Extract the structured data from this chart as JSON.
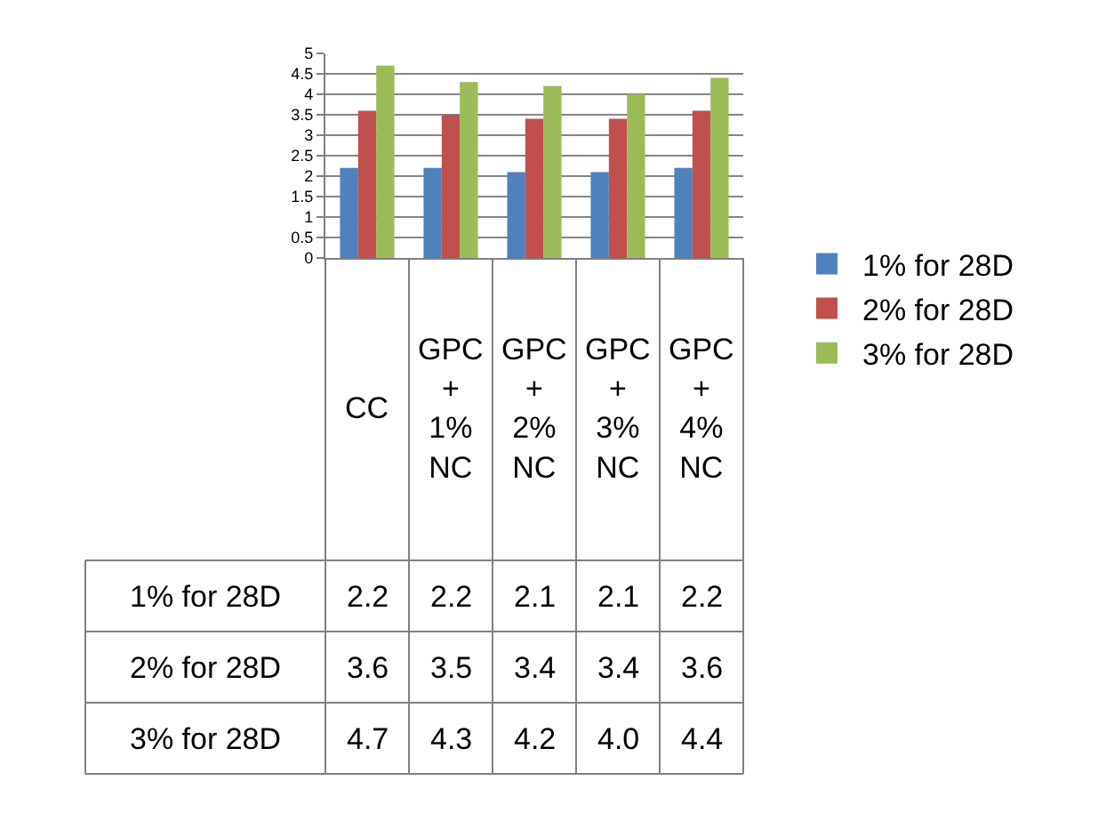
{
  "chart_data": {
    "type": "bar",
    "categories": [
      "CC",
      "GPC + 1% NC",
      "GPC + 2% NC",
      "GPC + 3% NC",
      "GPC + 4% NC"
    ],
    "series": [
      {
        "name": "1% for 28D",
        "color": "#4f81bd",
        "values": [
          2.2,
          2.2,
          2.1,
          2.1,
          2.2
        ],
        "value_labels": [
          "2.2",
          "2.2",
          "2.1",
          "2.1",
          "2.2"
        ]
      },
      {
        "name": "2% for 28D",
        "color": "#c0504d",
        "values": [
          3.6,
          3.5,
          3.4,
          3.4,
          3.6
        ],
        "value_labels": [
          "3.6",
          "3.5",
          "3.4",
          "3.4",
          "3.6"
        ]
      },
      {
        "name": "3% for 28D",
        "color": "#9bbb59",
        "values": [
          4.7,
          4.3,
          4.2,
          4.0,
          4.4
        ],
        "value_labels": [
          "4.7",
          "4.3",
          "4.2",
          "4.0",
          "4.4"
        ]
      }
    ],
    "ylim": [
      0,
      5
    ],
    "yticks": [
      0,
      0.5,
      1,
      1.5,
      2,
      2.5,
      3,
      3.5,
      4,
      4.5,
      5
    ],
    "grid": "y",
    "legend": "right"
  }
}
